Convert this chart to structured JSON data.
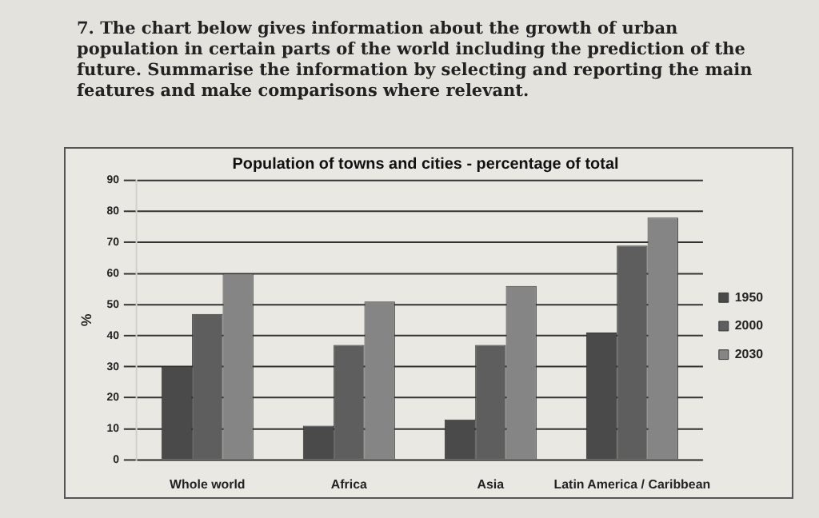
{
  "chart_data": {
    "type": "bar",
    "title": "Population of towns and cities - percentage of total",
    "annotations": [
      "7. The chart below gives information about the growth of urban population in certain parts of the world including the prediction of the future. Summarise the information by selecting and reporting the main features and make comparisons where relevant."
    ],
    "ylabel": "%",
    "categories": [
      "Whole world",
      "Africa",
      "Asia",
      "Latin America / Caribbean"
    ],
    "series": [
      {
        "name": "1950",
        "color": "#4a4a4a",
        "values": [
          30,
          11,
          13,
          41
        ]
      },
      {
        "name": "2000",
        "color": "#5e5e5e",
        "values": [
          47,
          37,
          37,
          69
        ]
      },
      {
        "name": "2030",
        "color": "#858585",
        "values": [
          60,
          51,
          56,
          78
        ]
      }
    ],
    "ylim": [
      0,
      90
    ],
    "yticks": [
      0,
      10,
      20,
      30,
      40,
      50,
      60,
      70,
      80,
      90
    ],
    "grid": "y",
    "legend": "right"
  }
}
